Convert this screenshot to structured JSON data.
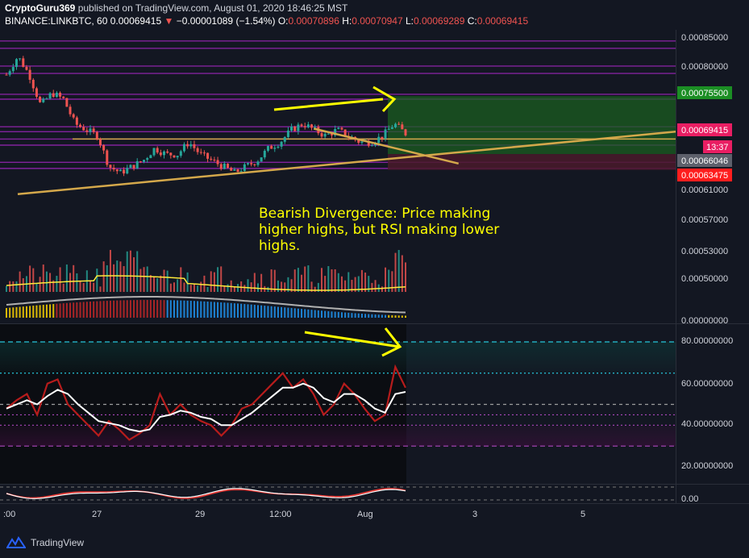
{
  "header": {
    "author": "CryptoGuru369",
    "published_text": "published on TradingView.com, August 01, 2020 18:46:25 MST",
    "symbol": "BINANCE:LINKBTC, 60",
    "last": "0.00069415",
    "change": "−0.00001089 (−1.54%)",
    "ohlc_o_label": "O:",
    "ohlc_o": "0.00070896",
    "ohlc_h_label": "H:",
    "ohlc_h": "0.00070947",
    "ohlc_l_label": "L:",
    "ohlc_l": "0.00069289",
    "ohlc_c_label": "C:",
    "ohlc_c": "0.00069415"
  },
  "annotation": {
    "lines": [
      "Bearish Divergence: Price making",
      "higher highs, but RSI making lower",
      "highs."
    ]
  },
  "price_badges": {
    "target": "0.00075500",
    "current": "0.00069415",
    "countdown": "13:37",
    "entry": "0.00066046",
    "stop": "0.00063475"
  },
  "price_axis": [
    "0.00085000",
    "0.00080000",
    "0.00075500",
    "0.00069415",
    "0.00066046",
    "0.00063475",
    "0.00061000",
    "0.00057000",
    "0.00053000",
    "0.00050000"
  ],
  "indicator_axis": [
    "0.00000000"
  ],
  "rsi_axis": [
    "80.00000000",
    "60.00000000",
    "40.00000000",
    "20.00000000"
  ],
  "osc_axis": [
    "0.00"
  ],
  "time_axis": [
    ":00",
    "27",
    "29",
    "12:00",
    "Aug",
    "3",
    "5"
  ],
  "watermark": "TradingView",
  "colors": {
    "background": "#131722",
    "up": "#26a69a",
    "down": "#ef5350",
    "resistance": "#8e24aa",
    "support_line": "#d4a84b",
    "annotation": "#ffff00",
    "rsi_line": "#b71c1c",
    "rsi_signal": "#ffffff",
    "target_zone": "#1b5e20",
    "stop_zone": "#4a1a2a"
  },
  "chart_data": {
    "type": "candlestick",
    "symbol": "LINKBTC",
    "interval": "60",
    "price_range": [
      0.000585,
      0.000855
    ],
    "trendlines": [
      {
        "name": "rising support",
        "from": [
          0,
          0.000595
        ],
        "to": [
          1,
          0.000697
        ]
      },
      {
        "name": "descending highs",
        "from": [
          0.45,
          0.000702
        ],
        "to": [
          0.67,
          0.000645
        ]
      }
    ],
    "horizontal_levels": [
      0.000845,
      0.000833,
      0.000804,
      0.000792,
      0.000758,
      0.00075,
      0.000705,
      0.000697,
      0.000685,
      0.000675,
      0.000647,
      0.000637
    ],
    "position": {
      "target": 0.000755,
      "entry": 0.00066046,
      "stop": 0.00063475
    },
    "close_series": [
      0.00079,
      0.00082,
      0.00079,
      0.00074,
      0.00076,
      0.00075,
      0.00071,
      0.0007,
      0.00069,
      0.00064,
      0.00063,
      0.00064,
      0.00065,
      0.00067,
      0.00066,
      0.00066,
      0.00068,
      0.00066,
      0.00065,
      0.00064,
      0.00063,
      0.00064,
      0.00065,
      0.00067,
      0.00068,
      0.0007,
      0.00071,
      0.0007,
      0.00069,
      0.0007,
      0.00069,
      0.00068,
      0.00068,
      0.00069,
      0.00071,
      0.000694
    ],
    "rsi": {
      "levels": [
        80,
        65,
        50,
        45,
        40,
        30
      ],
      "range": [
        15,
        85
      ],
      "values": [
        48,
        52,
        55,
        45,
        60,
        62,
        50,
        45,
        40,
        35,
        42,
        38,
        33,
        36,
        40,
        55,
        45,
        50,
        45,
        42,
        40,
        35,
        40,
        48,
        50,
        55,
        60,
        65,
        58,
        62,
        55,
        45,
        50,
        60,
        55,
        48,
        42,
        45,
        68,
        58
      ],
      "signal": [
        48,
        50,
        52,
        50,
        54,
        57,
        55,
        50,
        46,
        42,
        41,
        40,
        38,
        37,
        38,
        44,
        45,
        47,
        46,
        44,
        43,
        40,
        40,
        43,
        46,
        50,
        54,
        58,
        58,
        60,
        58,
        53,
        51,
        55,
        55,
        52,
        48,
        46,
        55,
        56
      ]
    }
  }
}
